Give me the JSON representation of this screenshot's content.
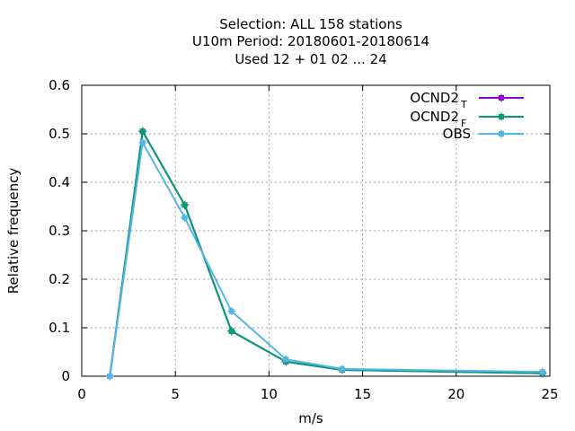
{
  "chart_data": {
    "type": "line",
    "title_lines": [
      "Selection: ALL    158 stations",
      "U10m  Period: 20180601-20180614",
      "Used  12 + 01 02 ... 24"
    ],
    "xlabel": "m/s",
    "ylabel": "Relative frequency",
    "xlim": [
      0,
      25
    ],
    "ylim": [
      0,
      0.6
    ],
    "x_ticks": [
      0,
      5,
      10,
      15,
      20,
      25
    ],
    "x_tick_labels": [
      "0",
      "5",
      "10",
      "15",
      "20",
      "25"
    ],
    "y_ticks": [
      0,
      0.1,
      0.2,
      0.3,
      0.4,
      0.5,
      0.6
    ],
    "y_tick_labels": [
      "0",
      "0.1",
      "0.2",
      "0.3",
      "0.4",
      "0.5",
      "0.6"
    ],
    "grid": true,
    "legend_position": "top-right",
    "series": [
      {
        "name": "OCND2",
        "name_subscript": "T",
        "color": "#9400d3",
        "x": [
          1.5,
          3.25,
          5.5,
          8.0,
          10.9,
          13.9,
          24.6
        ],
        "y": [
          0.0,
          0.505,
          0.353,
          0.093,
          0.03,
          0.013,
          0.006
        ]
      },
      {
        "name": "OCND2",
        "name_subscript": "F",
        "color": "#009e73",
        "x": [
          1.5,
          3.25,
          5.5,
          8.0,
          10.9,
          13.9,
          24.6
        ],
        "y": [
          0.0,
          0.505,
          0.353,
          0.093,
          0.03,
          0.013,
          0.006
        ]
      },
      {
        "name": "OBS",
        "name_subscript": "",
        "color": "#56b4e9",
        "x": [
          1.5,
          3.25,
          5.5,
          8.0,
          10.9,
          13.9,
          24.6
        ],
        "y": [
          0.0,
          0.482,
          0.327,
          0.134,
          0.035,
          0.015,
          0.009
        ]
      }
    ]
  }
}
